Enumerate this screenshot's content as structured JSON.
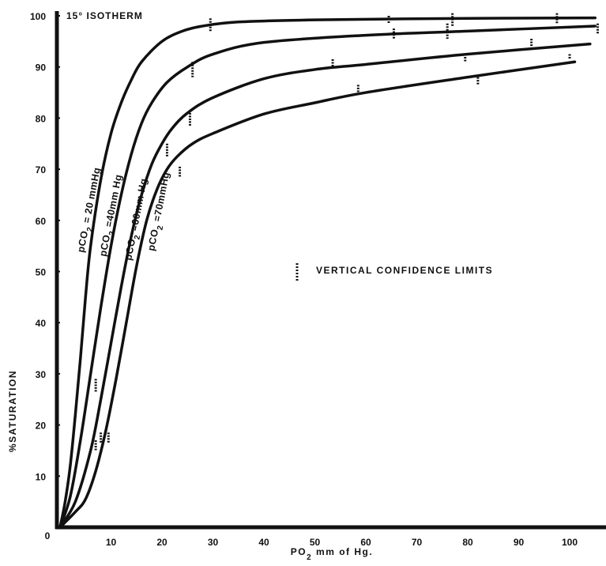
{
  "chart_data": {
    "type": "line",
    "title": "15° ISOTHERM",
    "xlabel": "PO2 mm of Hg.",
    "ylabel": "%SATURATION",
    "xlim": [
      0,
      108
    ],
    "ylim": [
      0,
      100
    ],
    "x_ticks": [
      "0",
      "10",
      "20",
      "30",
      "40",
      "50",
      "60",
      "70",
      "80",
      "90",
      "100"
    ],
    "y_ticks": [
      "10",
      "20",
      "30",
      "40",
      "50",
      "60",
      "70",
      "80",
      "90",
      "100"
    ],
    "grid": false,
    "legend": {
      "marker": "dotted-vertical-bar",
      "label": "VERTICAL CONFIDENCE LIMITS"
    },
    "series": [
      {
        "name": "pCO2 = 20 mmHg",
        "label_parts": [
          "pCO",
          "2",
          " =  20 mmHg"
        ],
        "points": [
          [
            0,
            0
          ],
          [
            1,
            5
          ],
          [
            2,
            12
          ],
          [
            3,
            22
          ],
          [
            4,
            33
          ],
          [
            5,
            45
          ],
          [
            6,
            55
          ],
          [
            8,
            68
          ],
          [
            10,
            77
          ],
          [
            12,
            83
          ],
          [
            14,
            87.5
          ],
          [
            16,
            91
          ],
          [
            20,
            95
          ],
          [
            24,
            97
          ],
          [
            28,
            98
          ],
          [
            35,
            98.8
          ],
          [
            50,
            99.2
          ],
          [
            80,
            99.5
          ],
          [
            105,
            99.6
          ]
        ]
      },
      {
        "name": "pCO2 =40mm Hg",
        "label_parts": [
          "pCO",
          "2",
          " =40mm Hg"
        ],
        "points": [
          [
            0,
            0
          ],
          [
            2,
            6
          ],
          [
            4,
            17
          ],
          [
            6,
            30
          ],
          [
            8,
            43
          ],
          [
            10,
            55
          ],
          [
            12,
            65
          ],
          [
            14,
            73
          ],
          [
            16,
            79
          ],
          [
            18,
            83
          ],
          [
            21,
            87
          ],
          [
            25,
            90
          ],
          [
            30,
            92.5
          ],
          [
            40,
            94.8
          ],
          [
            60,
            96.2
          ],
          [
            80,
            97
          ],
          [
            105,
            98
          ]
        ]
      },
      {
        "name": "pCO2 =60mm Hg",
        "label_parts": [
          "pCO",
          "2",
          " =60mm Hg"
        ],
        "points": [
          [
            0,
            0
          ],
          [
            3,
            5
          ],
          [
            6,
            15
          ],
          [
            8,
            25
          ],
          [
            10,
            36
          ],
          [
            12,
            47
          ],
          [
            14,
            57
          ],
          [
            16,
            65
          ],
          [
            18,
            71
          ],
          [
            20,
            75
          ],
          [
            22,
            78
          ],
          [
            25,
            81
          ],
          [
            30,
            84
          ],
          [
            40,
            87.7
          ],
          [
            50,
            89.5
          ],
          [
            60,
            90.5
          ],
          [
            80,
            92.5
          ],
          [
            104,
            94.5
          ]
        ]
      },
      {
        "name": "pCO2 =70mmHg",
        "label_parts": [
          "pCO",
          "2",
          " =70mmHg"
        ],
        "points": [
          [
            0,
            0
          ],
          [
            3,
            3
          ],
          [
            5,
            5.5
          ],
          [
            7,
            11
          ],
          [
            9,
            19
          ],
          [
            11,
            29
          ],
          [
            13,
            40
          ],
          [
            15,
            51
          ],
          [
            17,
            60
          ],
          [
            19,
            66
          ],
          [
            21,
            70
          ],
          [
            23,
            72.5
          ],
          [
            26,
            75
          ],
          [
            30,
            77
          ],
          [
            40,
            80.8
          ],
          [
            50,
            83
          ],
          [
            60,
            85
          ],
          [
            80,
            88
          ],
          [
            101,
            91
          ]
        ]
      }
    ],
    "confidence_limits": [
      {
        "x": 7,
        "ylo": 26.5,
        "yhi": 29
      },
      {
        "x": 7,
        "ylo": 15,
        "yhi": 17
      },
      {
        "x": 8,
        "ylo": 16.5,
        "yhi": 18.5
      },
      {
        "x": 9.5,
        "ylo": 16.5,
        "yhi": 18.5
      },
      {
        "x": 21,
        "ylo": 72.5,
        "yhi": 75
      },
      {
        "x": 23.5,
        "ylo": 68.5,
        "yhi": 70.5
      },
      {
        "x": 25.5,
        "ylo": 78.5,
        "yhi": 81
      },
      {
        "x": 26,
        "ylo": 88,
        "yhi": 91
      },
      {
        "x": 29.5,
        "ylo": 97,
        "yhi": 99.5
      },
      {
        "x": 53.5,
        "ylo": 90,
        "yhi": 91.5
      },
      {
        "x": 58.5,
        "ylo": 85,
        "yhi": 86.5
      },
      {
        "x": 64.5,
        "ylo": 98.5,
        "yhi": 100
      },
      {
        "x": 65.5,
        "ylo": 95.5,
        "yhi": 97.5
      },
      {
        "x": 76,
        "ylo": 95.5,
        "yhi": 98.5
      },
      {
        "x": 77,
        "ylo": 98,
        "yhi": 100.5
      },
      {
        "x": 79.5,
        "ylo": 91,
        "yhi": 92.5
      },
      {
        "x": 82,
        "ylo": 86.5,
        "yhi": 88
      },
      {
        "x": 92.5,
        "ylo": 94,
        "yhi": 95.5
      },
      {
        "x": 97.5,
        "ylo": 98.5,
        "yhi": 100.5
      },
      {
        "x": 100,
        "ylo": 91.5,
        "yhi": 92.5
      },
      {
        "x": 105.5,
        "ylo": 96.5,
        "yhi": 98.5
      }
    ]
  }
}
